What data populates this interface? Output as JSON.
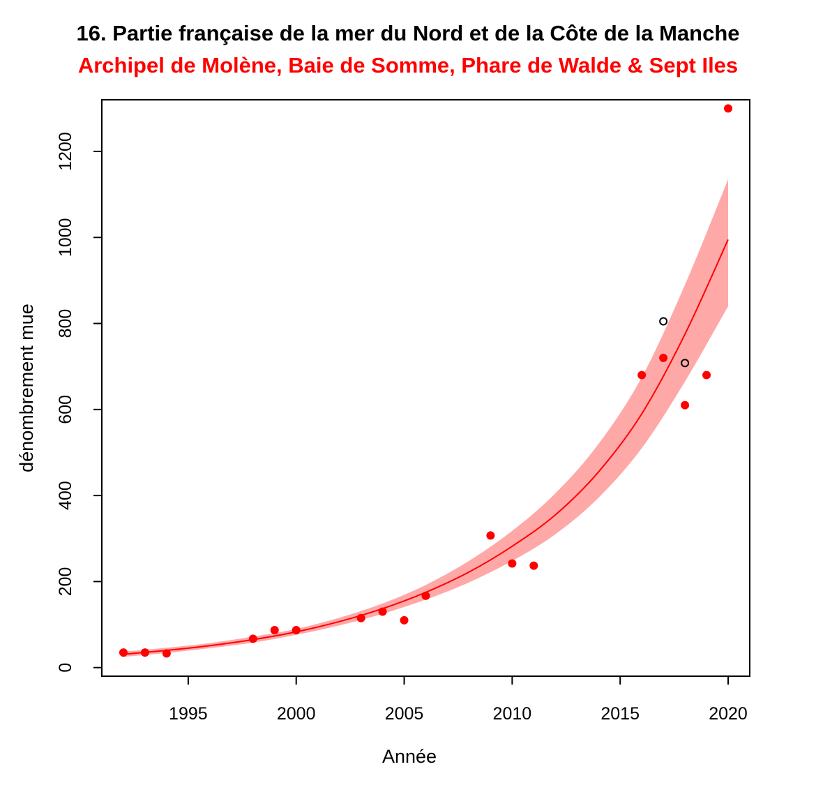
{
  "chart_data": {
    "type": "scatter",
    "title": "16. Partie française de la mer du Nord et de la Côte de la Manche",
    "subtitle": "Archipel de Molène, Baie de Somme, Phare de Walde & Sept Iles",
    "xlabel": "Année",
    "ylabel": "dénombrement mue",
    "xlim": [
      1991,
      2021
    ],
    "ylim": [
      -20,
      1320
    ],
    "xticks": [
      1995,
      2000,
      2005,
      2010,
      2015,
      2020
    ],
    "yticks": [
      0,
      200,
      400,
      600,
      800,
      1000,
      1200
    ],
    "series": [
      {
        "name": "counts",
        "marker": "filled-circle",
        "color": "#ff0000",
        "points": [
          {
            "x": 1992,
            "y": 35
          },
          {
            "x": 1993,
            "y": 35
          },
          {
            "x": 1994,
            "y": 33
          },
          {
            "x": 1998,
            "y": 67
          },
          {
            "x": 1999,
            "y": 87
          },
          {
            "x": 2000,
            "y": 87
          },
          {
            "x": 2003,
            "y": 115
          },
          {
            "x": 2004,
            "y": 130
          },
          {
            "x": 2005,
            "y": 110
          },
          {
            "x": 2006,
            "y": 167
          },
          {
            "x": 2009,
            "y": 307
          },
          {
            "x": 2010,
            "y": 242
          },
          {
            "x": 2011,
            "y": 237
          },
          {
            "x": 2016,
            "y": 680
          },
          {
            "x": 2017,
            "y": 720
          },
          {
            "x": 2018,
            "y": 610
          },
          {
            "x": 2019,
            "y": 680
          },
          {
            "x": 2020,
            "y": 1300
          }
        ]
      },
      {
        "name": "open-markers",
        "marker": "open-circle",
        "color": "#000000",
        "points": [
          {
            "x": 2017,
            "y": 805
          },
          {
            "x": 2018,
            "y": 708
          }
        ]
      }
    ],
    "fit": {
      "type": "exponential",
      "color": "#ff0000",
      "band_color": "#ffa8a8",
      "x": [
        1992,
        1994,
        1996,
        1998,
        2000,
        2002,
        2004,
        2006,
        2008,
        2010,
        2012,
        2014,
        2016,
        2018,
        2020
      ],
      "y": [
        31,
        40,
        51,
        65,
        83,
        107,
        137,
        175,
        222,
        282,
        355,
        455,
        590,
        775,
        995
      ],
      "lower": [
        25,
        34,
        45,
        58,
        76,
        98,
        125,
        158,
        198,
        248,
        310,
        395,
        510,
        665,
        840
      ],
      "upper": [
        37,
        46,
        57,
        72,
        90,
        116,
        149,
        192,
        248,
        318,
        405,
        520,
        675,
        890,
        1135
      ]
    }
  }
}
